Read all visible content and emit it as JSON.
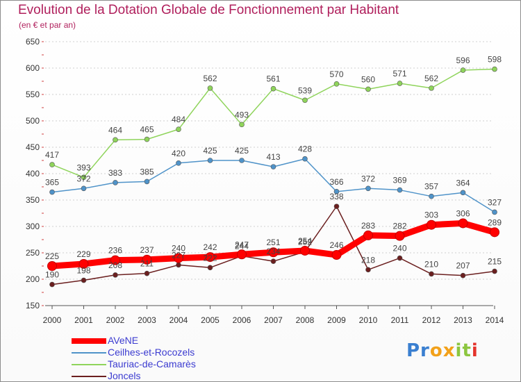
{
  "header": {
    "title": "Evolution de la Dotation Globale de Fonctionnement par Habitant",
    "subtitle": "(en € et par an)"
  },
  "logo": {
    "text": "Proxiti",
    "colors": [
      "#3a7fd0",
      "#f2a11a",
      "#8cc63f",
      "#e4342c"
    ]
  },
  "chart_data": {
    "type": "line",
    "title": "Evolution de la Dotation Globale de Fonctionnement par Habitant",
    "subtitle": "(en € et par an)",
    "xlabel": "",
    "ylabel": "",
    "x": [
      "2000",
      "2001",
      "2002",
      "2003",
      "2004",
      "2005",
      "2006",
      "2007",
      "2008",
      "2009",
      "2010",
      "2011",
      "2012",
      "2013",
      "2014"
    ],
    "ylim": [
      150,
      650
    ],
    "yticks": [
      150,
      200,
      250,
      300,
      350,
      400,
      450,
      500,
      550,
      600,
      650
    ],
    "grid": "horizontal dashed",
    "legend_position": "bottom-left",
    "series": [
      {
        "name": "AVeNE",
        "color": "#ff0000",
        "emphasis": true,
        "values": [
          225,
          229,
          236,
          237,
          240,
          242,
          247,
          251,
          254,
          246,
          283,
          282,
          303,
          306,
          289
        ]
      },
      {
        "name": "Ceilhes-et-Rocozels",
        "color": "#4f93c9",
        "emphasis": false,
        "values": [
          365,
          372,
          383,
          385,
          420,
          425,
          425,
          413,
          428,
          366,
          372,
          369,
          357,
          364,
          327
        ]
      },
      {
        "name": "Tauriac-de-Camarès",
        "color": "#8fd45b",
        "emphasis": false,
        "values": [
          417,
          393,
          464,
          465,
          484,
          562,
          493,
          561,
          539,
          570,
          560,
          571,
          562,
          596,
          598
        ]
      },
      {
        "name": "Joncels",
        "color": "#6b1f1f",
        "emphasis": false,
        "values": [
          190,
          198,
          208,
          211,
          227,
          222,
          244,
          234,
          252,
          338,
          218,
          240,
          210,
          207,
          215
        ]
      }
    ]
  }
}
